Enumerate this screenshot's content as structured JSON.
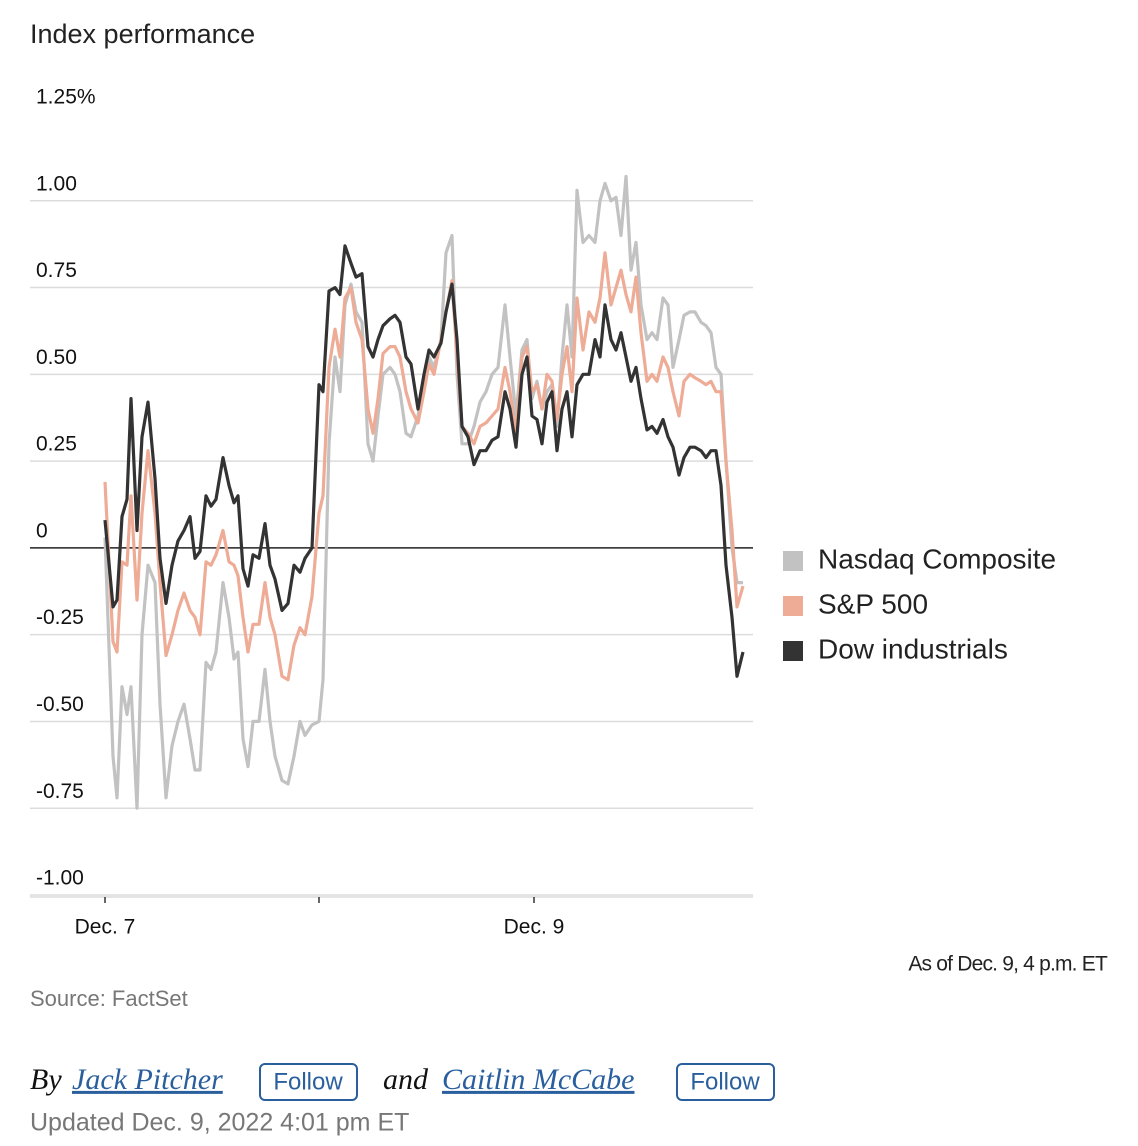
{
  "chart_data": {
    "type": "line",
    "title": "Index performance",
    "x": [
      0,
      8,
      12,
      17,
      22,
      26,
      32,
      37,
      43,
      50,
      55,
      61,
      67,
      73,
      79,
      85,
      90,
      95,
      101,
      106,
      111,
      118,
      124,
      129,
      133,
      138,
      143,
      148,
      154,
      160,
      165,
      170,
      177,
      183,
      189,
      195,
      200,
      207,
      214,
      218,
      224,
      230,
      235,
      240,
      246,
      251,
      257,
      263,
      268,
      273,
      278,
      285,
      290,
      295,
      301,
      306,
      313,
      319,
      324,
      329,
      336,
      341,
      347,
      352,
      357,
      363,
      369,
      375,
      381,
      387,
      393,
      400,
      405,
      411,
      417,
      422,
      427,
      432,
      437,
      442,
      447,
      452,
      457,
      462,
      467,
      472,
      478,
      484,
      490,
      495,
      500,
      506,
      511,
      516,
      521,
      526,
      531,
      536,
      542,
      547,
      552,
      558,
      563,
      568,
      574,
      579,
      585,
      590,
      596,
      601,
      606,
      611,
      616,
      621,
      627,
      632,
      638
    ],
    "xlim": [
      -75,
      648
    ],
    "xticks": [
      {
        "value": 0,
        "label": "Dec. 7"
      },
      214,
      {
        "value": 429,
        "label": "Dec. 9"
      }
    ],
    "ylim": [
      -1,
      1.25
    ],
    "yticks": [
      {
        "value": 1.25,
        "label": "1.25%"
      },
      {
        "value": 1,
        "label": "1.00"
      },
      0.75,
      {
        "value": 0.5,
        "label": "0.50"
      },
      0.25,
      0,
      -0.25,
      {
        "value": -0.5,
        "label": "-0.50"
      },
      -0.75,
      {
        "value": -1,
        "label": "-1.00"
      }
    ],
    "grid": true,
    "legend": "right",
    "series": [
      {
        "name": "Nasdaq Composite",
        "color": "#c2c2c2",
        "values": [
          0.03,
          -0.6,
          -0.72,
          -0.4,
          -0.48,
          -0.4,
          -0.75,
          -0.25,
          -0.05,
          -0.1,
          -0.45,
          -0.72,
          -0.57,
          -0.5,
          -0.45,
          -0.55,
          -0.64,
          -0.64,
          -0.33,
          -0.35,
          -0.3,
          -0.1,
          -0.2,
          -0.32,
          -0.3,
          -0.55,
          -0.63,
          -0.5,
          -0.5,
          -0.35,
          -0.5,
          -0.6,
          -0.67,
          -0.68,
          -0.6,
          -0.5,
          -0.54,
          -0.51,
          -0.5,
          -0.38,
          0.3,
          0.55,
          0.45,
          0.7,
          0.76,
          0.68,
          0.65,
          0.3,
          0.25,
          0.38,
          0.5,
          0.52,
          0.5,
          0.45,
          0.33,
          0.32,
          0.38,
          0.48,
          0.55,
          0.52,
          0.6,
          0.85,
          0.9,
          0.5,
          0.3,
          0.3,
          0.35,
          0.42,
          0.45,
          0.5,
          0.52,
          0.7,
          0.55,
          0.38,
          0.57,
          0.6,
          0.43,
          0.48,
          0.4,
          0.45,
          0.47,
          0.35,
          0.55,
          0.7,
          0.55,
          1.03,
          0.88,
          0.9,
          0.88,
          1.0,
          1.05,
          1.0,
          1.01,
          0.9,
          1.07,
          0.8,
          0.88,
          0.7,
          0.6,
          0.62,
          0.6,
          0.72,
          0.7,
          0.52,
          0.6,
          0.67,
          0.68,
          0.68,
          0.65,
          0.64,
          0.62,
          0.52,
          0.5,
          0.25,
          0.0,
          -0.1,
          -0.1
        ]
      },
      {
        "name": "S&P 500",
        "color": "#eeab95",
        "values": [
          0.19,
          -0.27,
          -0.3,
          -0.04,
          -0.05,
          0.15,
          -0.15,
          0.1,
          0.28,
          0.1,
          -0.1,
          -0.31,
          -0.25,
          -0.18,
          -0.13,
          -0.18,
          -0.2,
          -0.25,
          -0.04,
          -0.05,
          -0.02,
          0.05,
          -0.04,
          -0.05,
          -0.08,
          -0.2,
          -0.3,
          -0.22,
          -0.22,
          -0.1,
          -0.2,
          -0.25,
          -0.37,
          -0.38,
          -0.28,
          -0.23,
          -0.25,
          -0.14,
          0.1,
          0.15,
          0.52,
          0.63,
          0.55,
          0.72,
          0.75,
          0.65,
          0.6,
          0.4,
          0.33,
          0.43,
          0.56,
          0.58,
          0.58,
          0.55,
          0.45,
          0.4,
          0.36,
          0.45,
          0.53,
          0.5,
          0.6,
          0.68,
          0.77,
          0.55,
          0.35,
          0.33,
          0.3,
          0.35,
          0.36,
          0.38,
          0.4,
          0.52,
          0.45,
          0.33,
          0.55,
          0.58,
          0.45,
          0.47,
          0.4,
          0.5,
          0.48,
          0.37,
          0.5,
          0.58,
          0.45,
          0.72,
          0.57,
          0.68,
          0.65,
          0.72,
          0.85,
          0.7,
          0.75,
          0.8,
          0.73,
          0.68,
          0.78,
          0.62,
          0.48,
          0.5,
          0.48,
          0.55,
          0.52,
          0.45,
          0.38,
          0.48,
          0.5,
          0.49,
          0.48,
          0.47,
          0.48,
          0.45,
          0.45,
          0.25,
          0.05,
          -0.17,
          -0.11
        ]
      },
      {
        "name": "Dow industrials",
        "color": "#333333",
        "values": [
          0.08,
          -0.17,
          -0.15,
          0.09,
          0.14,
          0.43,
          0.05,
          0.32,
          0.42,
          0.2,
          -0.03,
          -0.16,
          -0.05,
          0.02,
          0.05,
          0.09,
          -0.03,
          -0.01,
          0.15,
          0.12,
          0.14,
          0.26,
          0.18,
          0.13,
          0.15,
          -0.06,
          -0.11,
          -0.02,
          -0.03,
          0.07,
          -0.05,
          -0.09,
          -0.18,
          -0.16,
          -0.05,
          -0.07,
          -0.03,
          0.0,
          0.47,
          0.45,
          0.74,
          0.75,
          0.73,
          0.87,
          0.82,
          0.78,
          0.79,
          0.58,
          0.55,
          0.6,
          0.64,
          0.66,
          0.67,
          0.65,
          0.55,
          0.53,
          0.4,
          0.5,
          0.57,
          0.55,
          0.59,
          0.68,
          0.76,
          0.6,
          0.35,
          0.32,
          0.24,
          0.28,
          0.28,
          0.31,
          0.32,
          0.45,
          0.4,
          0.29,
          0.5,
          0.55,
          0.38,
          0.37,
          0.3,
          0.42,
          0.45,
          0.28,
          0.4,
          0.45,
          0.32,
          0.47,
          0.5,
          0.5,
          0.6,
          0.55,
          0.7,
          0.6,
          0.57,
          0.62,
          0.55,
          0.48,
          0.52,
          0.43,
          0.34,
          0.35,
          0.33,
          0.37,
          0.32,
          0.29,
          0.21,
          0.26,
          0.29,
          0.29,
          0.28,
          0.26,
          0.28,
          0.28,
          0.18,
          -0.05,
          -0.2,
          -0.37,
          -0.3
        ]
      }
    ],
    "note": "As of Dec. 9, 4 p.m. ET",
    "source": "Source: FactSet"
  },
  "byline": {
    "prefix": "By",
    "conjunction": "and",
    "authors": [
      {
        "name": "Jack Pitcher",
        "button": "Follow"
      },
      {
        "name": "Caitlin McCabe",
        "button": "Follow"
      }
    ],
    "updated": "Updated Dec. 9, 2022 4:01 pm ET"
  }
}
